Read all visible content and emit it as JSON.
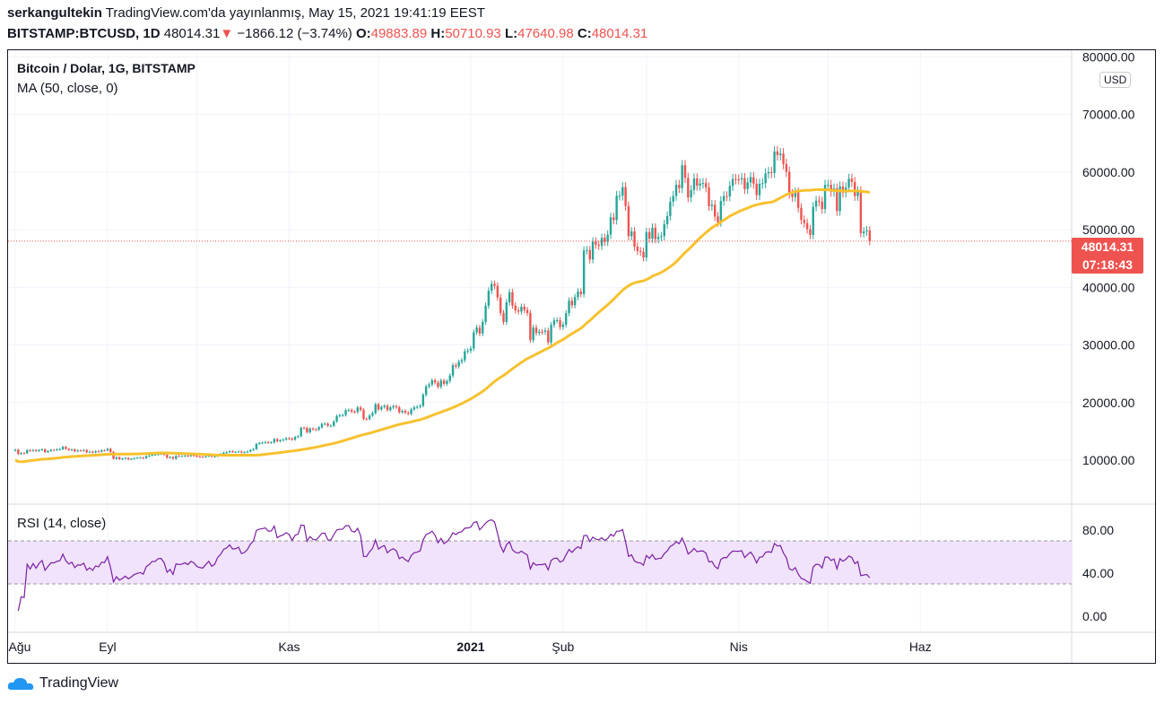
{
  "header": {
    "author": "serkangultekin",
    "published": "TradingView.com'da yayınlanmış, May 15, 2021 19:41:19 EEST",
    "symbol": "BITSTAMP:BTCUSD, 1D",
    "last": "48014.31",
    "change": "−1866.12 (−3.74%)",
    "o_label": "O:",
    "o": "49883.89",
    "h_label": "H:",
    "h": "50710.93",
    "l_label": "L:",
    "l": "47640.98",
    "c_label": "C:",
    "c": "48014.31"
  },
  "legend": {
    "title": "Bitcoin / Dolar, 1G, BITSTAMP",
    "ma": "MA (50, close, 0)",
    "rsi": "RSI (14, close)"
  },
  "price_badge": {
    "price": "48014.31",
    "countdown": "07:18:43",
    "color": "#ef5350"
  },
  "currency": "USD",
  "brand": "TradingView",
  "colors": {
    "up": "#26a69a",
    "down": "#ef5350",
    "ma": "#f7c12f",
    "rsi": "#7b1fa2",
    "rsi_band": "#f0e3fb"
  },
  "chart_data": [
    {
      "type": "candlestick",
      "interval": "1D",
      "start_date": "2020-08-01",
      "end_date": "2021-05-15",
      "y_ticks": [
        "80000.00",
        "70000.00",
        "60000.00",
        "50000.00",
        "40000.00",
        "30000.00",
        "20000.00",
        "10000.00"
      ],
      "ylim": [
        5000,
        82000
      ],
      "x_ticks": [
        "Ağu",
        "Eyl",
        "Kas",
        "2021",
        "Şub",
        "Nis",
        "Haz"
      ],
      "indicator": "MA 50 close",
      "closes": [
        11800,
        11070,
        11230,
        11200,
        11750,
        11600,
        11760,
        11590,
        11760,
        11880,
        11400,
        11580,
        11780,
        11770,
        11860,
        11900,
        12300,
        11950,
        11750,
        11860,
        11530,
        11680,
        11660,
        11760,
        11360,
        11470,
        11330,
        11530,
        11480,
        11700,
        11680,
        11970,
        11420,
        10230,
        10520,
        10170,
        10260,
        10380,
        10130,
        10230,
        10350,
        10400,
        10440,
        10330,
        10680,
        10790,
        10950,
        10950,
        11090,
        11100,
        10920,
        10420,
        10540,
        10240,
        10740,
        10700,
        10720,
        10780,
        10700,
        10840,
        10780,
        10620,
        10570,
        10550,
        10670,
        10790,
        10600,
        10670,
        10930,
        11060,
        11300,
        11370,
        11540,
        11420,
        11430,
        11500,
        11320,
        11370,
        11490,
        11750,
        11920,
        12820,
        12980,
        13030,
        13130,
        13040,
        13070,
        13650,
        13280,
        13450,
        13560,
        13800,
        13740,
        13550,
        14020,
        14150,
        15590,
        15580,
        14830,
        15480,
        15330,
        15300,
        15700,
        16290,
        16320,
        15960,
        15960,
        16720,
        17660,
        17800,
        17820,
        18680,
        18710,
        18420,
        18370,
        19150,
        18740,
        17150,
        17140,
        17730,
        18180,
        19700,
        18790,
        19220,
        19440,
        18690,
        19150,
        19370,
        19170,
        18320,
        18550,
        18250,
        18040,
        18800,
        19170,
        19270,
        19440,
        21350,
        22800,
        23130,
        23860,
        23480,
        22720,
        23820,
        23240,
        23720,
        24690,
        26490,
        26280,
        27080,
        27360,
        28890,
        28990,
        29400,
        32200,
        33000,
        31990,
        33990,
        36800,
        39400,
        40600,
        40250,
        38240,
        35550,
        34000,
        37390,
        39150,
        36830,
        36020,
        35790,
        36630,
        36070,
        35550,
        30830,
        33010,
        32090,
        32290,
        32270,
        32510,
        30430,
        33470,
        34270,
        34290,
        33110,
        33530,
        35510,
        37680,
        36900,
        38300,
        39240,
        38830,
        46400,
        46480,
        44830,
        47970,
        47400,
        47200,
        48600,
        47900,
        49150,
        52150,
        51680,
        55900,
        55900,
        57400,
        54100,
        48880,
        49700,
        47060,
        46300,
        46150,
        45170,
        49600,
        48440,
        50350,
        48370,
        48750,
        48880,
        50970,
        52380,
        54880,
        55860,
        57800,
        57230,
        61190,
        59000,
        55600,
        56900,
        58900,
        57650,
        58030,
        58100,
        57350,
        54100,
        54340,
        52300,
        51300,
        55000,
        55830,
        55780,
        57600,
        58800,
        58740,
        58720,
        58970,
        57060,
        58200,
        59130,
        57990,
        56000,
        57980,
        58080,
        59770,
        60000,
        59860,
        63580,
        62960,
        63220,
        61400,
        60060,
        56220,
        55700,
        56470,
        53800,
        51700,
        51150,
        50100,
        49100,
        54000,
        55050,
        54880,
        53600,
        57800,
        57800,
        56580,
        57170,
        53240,
        57520,
        56440,
        57340,
        58840,
        58280,
        55860,
        56700,
        49400,
        49700,
        49880,
        48014.31
      ]
    },
    {
      "type": "line",
      "title": "RSI (14, close)",
      "y_ticks": [
        "80.00",
        "40.00",
        "0.00"
      ],
      "ylim": [
        -15,
        105
      ],
      "band": [
        30,
        70
      ]
    }
  ]
}
